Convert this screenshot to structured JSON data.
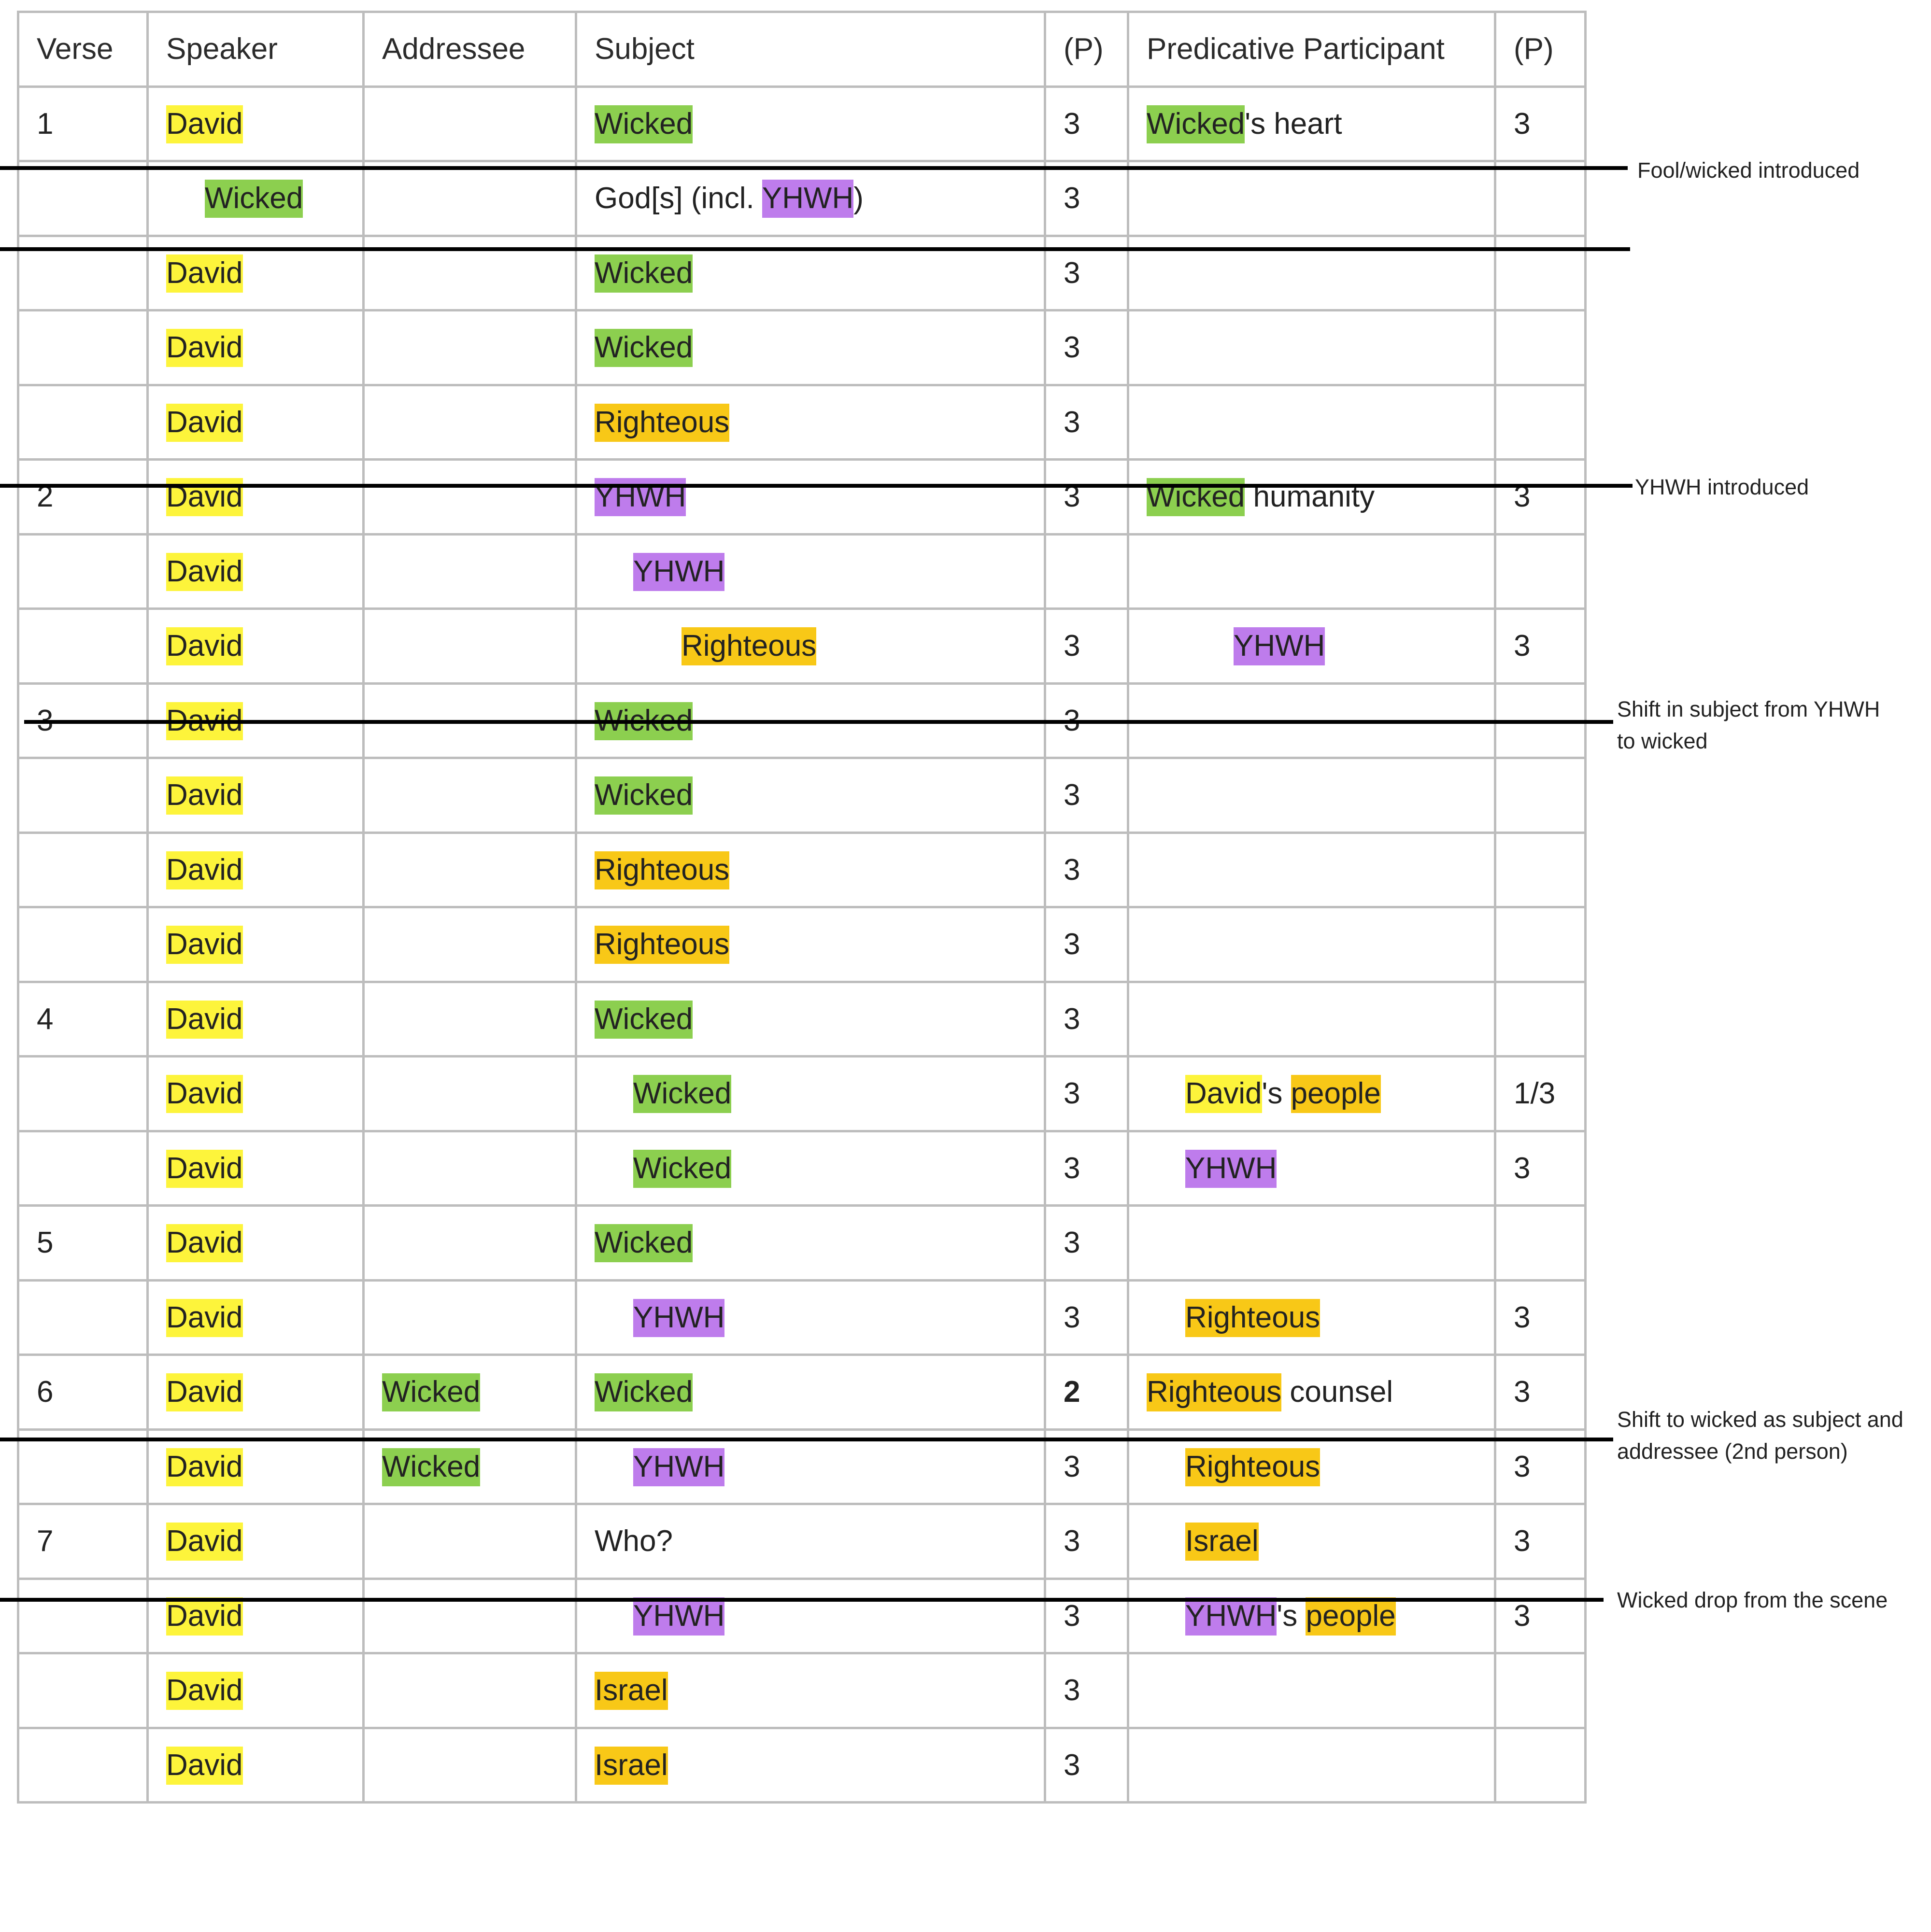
{
  "headers": {
    "verse": "Verse",
    "speaker": "Speaker",
    "addressee": "Addressee",
    "subject": "Subject",
    "subject_p": "(P)",
    "predicative": "Predicative Participant",
    "predicative_p": "(P)"
  },
  "highlight_colors": {
    "David": "#fdf43b",
    "Wicked": "#8ccf4f",
    "YHWH": "#be7cec",
    "Righteous": "#f8c817"
  },
  "rows": [
    {
      "verse": "1",
      "speaker": [
        {
          "t": "David",
          "hl": "david"
        }
      ],
      "addressee": [],
      "subject": [
        {
          "t": "Wicked",
          "hl": "wicked"
        }
      ],
      "sp": "3",
      "pred": [
        {
          "t": "Wicked",
          "hl": "wicked"
        },
        {
          "t": "'s heart"
        }
      ],
      "pp": "3"
    },
    {
      "verse": "",
      "speaker": [
        {
          "t": "Wicked",
          "hl": "wicked"
        }
      ],
      "speaker_indent": "1",
      "addressee": [],
      "subject": [
        {
          "t": "God[s] (incl. "
        },
        {
          "t": "YHWH",
          "hl": "yhwh"
        },
        {
          "t": ")"
        }
      ],
      "sp": "3",
      "pred": [],
      "pp": ""
    },
    {
      "verse": "",
      "speaker": [
        {
          "t": "David",
          "hl": "david"
        }
      ],
      "addressee": [],
      "subject": [
        {
          "t": "Wicked",
          "hl": "wicked"
        }
      ],
      "sp": "3",
      "pred": [],
      "pp": ""
    },
    {
      "verse": "",
      "speaker": [
        {
          "t": "David",
          "hl": "david"
        }
      ],
      "addressee": [],
      "subject": [
        {
          "t": "Wicked",
          "hl": "wicked"
        }
      ],
      "sp": "3",
      "pred": [],
      "pp": ""
    },
    {
      "verse": "",
      "speaker": [
        {
          "t": "David",
          "hl": "david"
        }
      ],
      "addressee": [],
      "subject": [
        {
          "t": "Righteous",
          "hl": "righteous"
        }
      ],
      "sp": "3",
      "pred": [],
      "pp": ""
    },
    {
      "verse": "2",
      "speaker": [
        {
          "t": "David",
          "hl": "david"
        }
      ],
      "addressee": [],
      "subject": [
        {
          "t": "YHWH",
          "hl": "yhwh"
        }
      ],
      "sp": "3",
      "pred": [
        {
          "t": "Wicked",
          "hl": "wicked"
        },
        {
          "t": " humanity"
        }
      ],
      "pp": "3"
    },
    {
      "verse": "",
      "speaker": [
        {
          "t": "David",
          "hl": "david"
        }
      ],
      "addressee": [],
      "subject": [
        {
          "t": "YHWH",
          "hl": "yhwh"
        }
      ],
      "subject_indent": "1",
      "sp": "",
      "pred": [],
      "pp": ""
    },
    {
      "verse": "",
      "speaker": [
        {
          "t": "David",
          "hl": "david"
        }
      ],
      "addressee": [],
      "subject": [
        {
          "t": "Righteous",
          "hl": "righteous"
        }
      ],
      "subject_indent": "2",
      "sp": "3",
      "pred": [
        {
          "t": "YHWH",
          "hl": "yhwh"
        }
      ],
      "pred_indent": "2",
      "pp": "3"
    },
    {
      "verse": "3",
      "speaker": [
        {
          "t": "David",
          "hl": "david"
        }
      ],
      "addressee": [],
      "subject": [
        {
          "t": "Wicked",
          "hl": "wicked"
        }
      ],
      "sp": "3",
      "pred": [],
      "pp": ""
    },
    {
      "verse": "",
      "speaker": [
        {
          "t": "David",
          "hl": "david"
        }
      ],
      "addressee": [],
      "subject": [
        {
          "t": "Wicked",
          "hl": "wicked"
        }
      ],
      "sp": "3",
      "pred": [],
      "pp": ""
    },
    {
      "verse": "",
      "speaker": [
        {
          "t": "David",
          "hl": "david"
        }
      ],
      "addressee": [],
      "subject": [
        {
          "t": "Righteous",
          "hl": "righteous"
        }
      ],
      "sp": "3",
      "pred": [],
      "pp": ""
    },
    {
      "verse": "",
      "speaker": [
        {
          "t": "David",
          "hl": "david"
        }
      ],
      "addressee": [],
      "subject": [
        {
          "t": "Righteous",
          "hl": "righteous"
        }
      ],
      "sp": "3",
      "pred": [],
      "pp": ""
    },
    {
      "verse": "4",
      "speaker": [
        {
          "t": "David",
          "hl": "david"
        }
      ],
      "addressee": [],
      "subject": [
        {
          "t": "Wicked",
          "hl": "wicked"
        }
      ],
      "sp": "3",
      "pred": [],
      "pp": ""
    },
    {
      "verse": "",
      "speaker": [
        {
          "t": "David",
          "hl": "david"
        }
      ],
      "addressee": [],
      "subject": [
        {
          "t": "Wicked",
          "hl": "wicked"
        }
      ],
      "subject_indent": "1",
      "sp": "3",
      "pred": [
        {
          "t": "David",
          "hl": "david"
        },
        {
          "t": "'s "
        },
        {
          "t": "people",
          "hl": "righteous"
        }
      ],
      "pred_indent": "1",
      "pp": "1/3"
    },
    {
      "verse": "",
      "speaker": [
        {
          "t": "David",
          "hl": "david"
        }
      ],
      "addressee": [],
      "subject": [
        {
          "t": "Wicked",
          "hl": "wicked"
        }
      ],
      "subject_indent": "1",
      "sp": "3",
      "pred": [
        {
          "t": "YHWH",
          "hl": "yhwh"
        }
      ],
      "pred_indent": "1",
      "pp": "3"
    },
    {
      "verse": "5",
      "speaker": [
        {
          "t": "David",
          "hl": "david"
        }
      ],
      "addressee": [],
      "subject": [
        {
          "t": "Wicked",
          "hl": "wicked"
        }
      ],
      "sp": "3",
      "pred": [],
      "pp": ""
    },
    {
      "verse": "",
      "speaker": [
        {
          "t": "David",
          "hl": "david"
        }
      ],
      "addressee": [],
      "subject": [
        {
          "t": "YHWH",
          "hl": "yhwh"
        }
      ],
      "subject_indent": "1",
      "sp": "3",
      "pred": [
        {
          "t": "Righteous",
          "hl": "righteous"
        }
      ],
      "pred_indent": "1",
      "pp": "3"
    },
    {
      "verse": "6",
      "speaker": [
        {
          "t": "David",
          "hl": "david"
        }
      ],
      "addressee": [
        {
          "t": "Wicked",
          "hl": "wicked"
        }
      ],
      "subject": [
        {
          "t": "Wicked",
          "hl": "wicked"
        }
      ],
      "sp": "2",
      "sp_bold": "1",
      "pred": [
        {
          "t": "Righteous",
          "hl": "righteous"
        },
        {
          "t": " counsel"
        }
      ],
      "pp": "3"
    },
    {
      "verse": "",
      "speaker": [
        {
          "t": "David",
          "hl": "david"
        }
      ],
      "addressee": [
        {
          "t": "Wicked",
          "hl": "wicked"
        }
      ],
      "subject": [
        {
          "t": "YHWH",
          "hl": "yhwh"
        }
      ],
      "subject_indent": "1",
      "sp": "3",
      "pred": [
        {
          "t": "Righteous",
          "hl": "righteous"
        }
      ],
      "pred_indent": "1",
      "pp": "3"
    },
    {
      "verse": "7",
      "speaker": [
        {
          "t": "David",
          "hl": "david"
        }
      ],
      "addressee": [],
      "subject": [
        {
          "t": "Who?"
        }
      ],
      "sp": "3",
      "pred": [
        {
          "t": "Israel",
          "hl": "righteous"
        }
      ],
      "pred_indent": "1",
      "pp": "3"
    },
    {
      "verse": "",
      "speaker": [
        {
          "t": "David",
          "hl": "david"
        }
      ],
      "addressee": [],
      "subject": [
        {
          "t": "YHWH",
          "hl": "yhwh"
        }
      ],
      "subject_indent": "1",
      "sp": "3",
      "pred": [
        {
          "t": "YHWH",
          "hl": "yhwh"
        },
        {
          "t": "'s "
        },
        {
          "t": "people",
          "hl": "righteous"
        }
      ],
      "pred_indent": "1",
      "pp": "3"
    },
    {
      "verse": "",
      "speaker": [
        {
          "t": "David",
          "hl": "david"
        }
      ],
      "addressee": [],
      "subject": [
        {
          "t": "Israel",
          "hl": "righteous"
        }
      ],
      "sp": "3",
      "pred": [],
      "pp": ""
    },
    {
      "verse": "",
      "speaker": [
        {
          "t": "David",
          "hl": "david"
        }
      ],
      "addressee": [],
      "subject": [
        {
          "t": "Israel",
          "hl": "righteous"
        }
      ],
      "sp": "3",
      "pred": [],
      "pp": ""
    }
  ],
  "annotations": [
    {
      "lines": [
        "Fool/wicked introduced"
      ]
    },
    {
      "lines": [
        "YHWH introduced"
      ]
    },
    {
      "lines": [
        "Shift in subject from YHWH",
        "to wicked"
      ]
    },
    {
      "lines": [
        "Shift to wicked as subject and",
        "addressee (2nd person)"
      ]
    },
    {
      "lines": [
        "Wicked drop from the scene"
      ]
    }
  ]
}
